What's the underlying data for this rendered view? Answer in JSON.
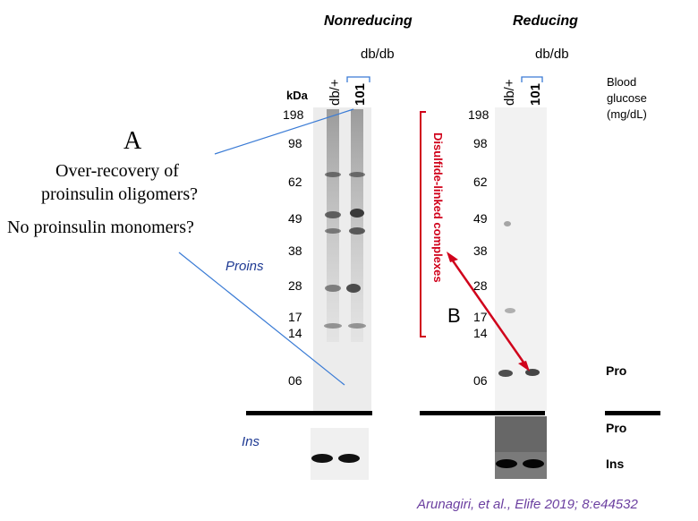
{
  "headers": {
    "nonreducing": "Nonreducing",
    "reducing": "Reducing"
  },
  "lanes": {
    "dbdb": "db/db",
    "dbplus": "db/+",
    "num": "101"
  },
  "kda_label": "kDa",
  "mw_left": [
    "198",
    "98",
    "62",
    "49",
    "38",
    "28",
    "17",
    "14",
    "06"
  ],
  "mw_right": [
    "198",
    "98",
    "62",
    "49",
    "38",
    "28",
    "17",
    "14",
    "06"
  ],
  "blood_glucose": [
    "Blood",
    "glucose",
    "(mg/dL)"
  ],
  "annotations": {
    "a_letter": "A",
    "a_line1": "Over-recovery of",
    "a_line2": "proinsulin oligomers?",
    "a_line3": "No proinsulin monomers?",
    "b_letter": "B",
    "complexes": "Disulfide-linked complexes",
    "proins": "Proins",
    "ins_left": "Ins"
  },
  "right_labels": {
    "pro1": "Pro",
    "pro2": "Pro",
    "ins": "Ins"
  },
  "citation": "Arunagiri, et al., Elife 2019; 8:e44532",
  "colors": {
    "red": "#d0021b",
    "blue_line": "#3a7bd5",
    "citation": "#6b3fa0"
  }
}
